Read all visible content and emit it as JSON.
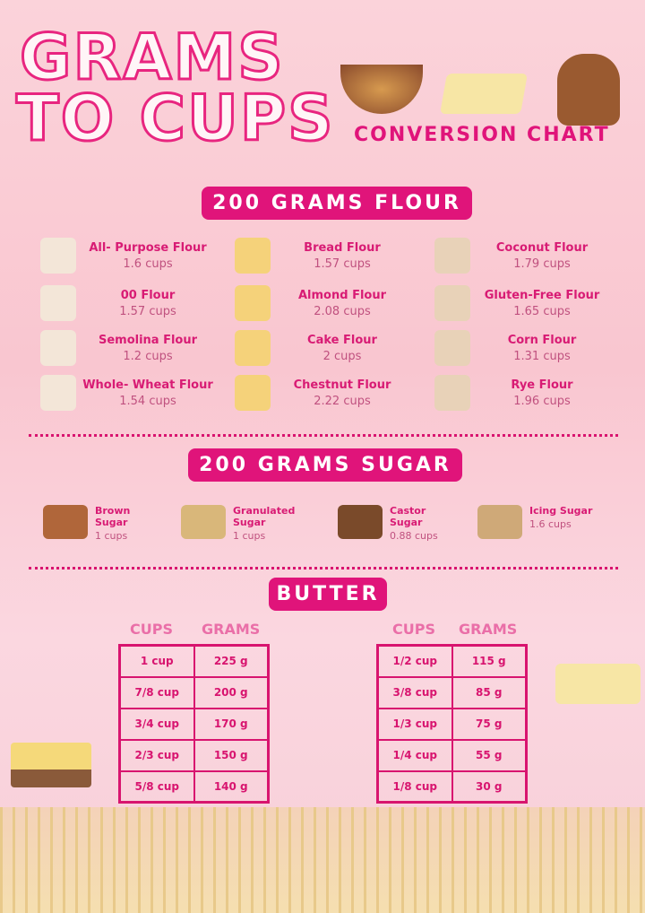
{
  "title": {
    "line1": "GRAMS",
    "line2": "TO CUPS",
    "subtitle": "CONVERSION CHART"
  },
  "colors": {
    "accent": "#e0147a",
    "background": "#f9c6d0"
  },
  "flour": {
    "heading": "200 GRAMS FLOUR",
    "items": [
      {
        "name": "All- Purpose Flour",
        "value": "1.6 cups",
        "icon": "flour-bag-icon"
      },
      {
        "name": "Bread Flour",
        "value": "1.57 cups",
        "icon": "flour-bag-icon"
      },
      {
        "name": "Coconut Flour",
        "value": "1.79 cups",
        "icon": "flour-bag-icon"
      },
      {
        "name": "00 Flour",
        "value": "1.57 cups",
        "icon": "flour-carton-icon"
      },
      {
        "name": "Almond Flour",
        "value": "2.08 cups",
        "icon": "bowl-icon"
      },
      {
        "name": "Gluten-Free  Flour",
        "value": "1.65 cups",
        "icon": "sack-icon"
      },
      {
        "name": "Semolina Flour",
        "value": "1.2 cups",
        "icon": "flour-pile-icon"
      },
      {
        "name": "Cake Flour",
        "value": "2 cups",
        "icon": "flour-bag-icon"
      },
      {
        "name": "Corn Flour",
        "value": "1.31 cups",
        "icon": "bowl-icon"
      },
      {
        "name": "Whole- Wheat Flour",
        "value": "1.54 cups",
        "icon": "sack-icon"
      },
      {
        "name": "Chestnut Flour",
        "value": "2.22  cups",
        "icon": "sack-icon"
      },
      {
        "name": "Rye Flour",
        "value": "1.96 cups",
        "icon": "sack-icon"
      }
    ]
  },
  "sugar": {
    "heading": "200 GRAMS SUGAR",
    "items": [
      {
        "name": "Brown Sugar",
        "value": "1 cups"
      },
      {
        "name": "Granulated Sugar",
        "value": "1 cups"
      },
      {
        "name": "Castor Sugar",
        "value": "0.88 cups"
      },
      {
        "name": "Icing Sugar",
        "value": "1.6 cups"
      }
    ]
  },
  "butter": {
    "heading": "BUTTER",
    "col_cups": "CUPS",
    "col_grams": "GRAMS",
    "left": [
      [
        "1 cup",
        "225 g"
      ],
      [
        "7/8 cup",
        "200 g"
      ],
      [
        "3/4 cup",
        "170 g"
      ],
      [
        "2/3 cup",
        "150 g"
      ],
      [
        "5/8 cup",
        "140 g"
      ]
    ],
    "right": [
      [
        "1/2  cup",
        "115 g"
      ],
      [
        "3/8 cup",
        "85 g"
      ],
      [
        "1/3 cup",
        "75 g"
      ],
      [
        "1/4 cup",
        "55 g"
      ],
      [
        "1/8 cup",
        "30 g"
      ]
    ]
  }
}
